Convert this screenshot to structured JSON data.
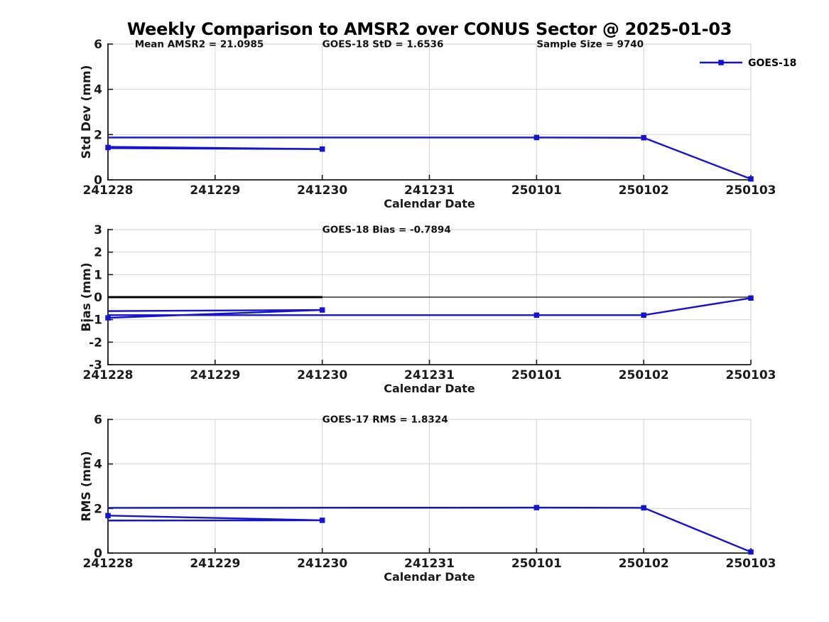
{
  "title": "Weekly Comparison to AMSR2 over CONUS Sector @ 2025-01-03",
  "colors": {
    "series": "#1414d0",
    "grid": "#d6d6d6",
    "box_light": "#cccccc",
    "axis": "#1a1a1a",
    "text": "#1a1a1a",
    "annotation_text": "#111111",
    "zero_line": "#000000"
  },
  "legend": {
    "label": "GOES-18"
  },
  "chart_data": [
    {
      "id": "stddev",
      "type": "line",
      "series_name": "GOES-18",
      "ylabel": "Std Dev (mm)",
      "xlabel": "Calendar Date",
      "ylim": [
        0,
        6
      ],
      "yticks": [
        0,
        2,
        4,
        6
      ],
      "categories": [
        "241228",
        "241229",
        "241230",
        "241231",
        "250101",
        "250102",
        "250103"
      ],
      "annotations": [
        {
          "xi": 0.25,
          "text": "Mean AMSR2 = 21.0985"
        },
        {
          "xi": 2.0,
          "text": "GOES-18 StD = 1.6536"
        },
        {
          "xi": 4.0,
          "text": "Sample Size = 9740"
        }
      ],
      "has_legend": true,
      "lines": [
        {
          "points": [
            [
              0,
              1.46
            ],
            [
              2,
              1.36
            ]
          ]
        },
        {
          "points": [
            [
              0,
              1.4
            ],
            [
              2,
              1.36
            ]
          ]
        },
        {
          "points": [
            [
              0,
              1.87
            ],
            [
              4,
              1.87
            ],
            [
              5,
              1.86
            ],
            [
              6,
              0.04
            ]
          ]
        }
      ],
      "markers": [
        [
          0,
          1.43
        ],
        [
          2,
          1.36
        ],
        [
          4,
          1.87
        ],
        [
          5,
          1.86
        ],
        [
          6,
          0.04
        ]
      ]
    },
    {
      "id": "bias",
      "type": "line",
      "series_name": "GOES-18",
      "ylabel": "Bias (mm)",
      "xlabel": "Calendar Date",
      "ylim": [
        -3,
        3
      ],
      "yticks": [
        -3,
        -2,
        -1,
        0,
        1,
        2,
        3
      ],
      "categories": [
        "241228",
        "241229",
        "241230",
        "241231",
        "250101",
        "250102",
        "250103"
      ],
      "annotations": [
        {
          "xi": 2.0,
          "text": "GOES-18 Bias  = -0.7894"
        }
      ],
      "has_legend": false,
      "zero_line": {
        "value": 0,
        "bold_span": [
          0,
          2
        ]
      },
      "lines": [
        {
          "points": [
            [
              0,
              -0.62
            ],
            [
              2,
              -0.57
            ]
          ]
        },
        {
          "points": [
            [
              0,
              -0.92
            ],
            [
              2,
              -0.57
            ]
          ]
        },
        {
          "points": [
            [
              0,
              -0.8
            ],
            [
              4,
              -0.8
            ],
            [
              5,
              -0.8
            ],
            [
              6,
              -0.04
            ]
          ]
        }
      ],
      "markers": [
        [
          0,
          -0.92
        ],
        [
          2,
          -0.57
        ],
        [
          4,
          -0.8
        ],
        [
          5,
          -0.8
        ],
        [
          6,
          -0.04
        ]
      ]
    },
    {
      "id": "rms",
      "type": "line",
      "series_name": "GOES-18",
      "ylabel": "RMS (mm)",
      "xlabel": "Calendar Date",
      "ylim": [
        0,
        6
      ],
      "yticks": [
        0,
        2,
        4,
        6
      ],
      "categories": [
        "241228",
        "241229",
        "241230",
        "241231",
        "250101",
        "250102",
        "250103"
      ],
      "annotations": [
        {
          "xi": 2.0,
          "text": "GOES-17 RMS = 1.8324"
        }
      ],
      "has_legend": false,
      "lines": [
        {
          "points": [
            [
              0,
              1.68
            ],
            [
              2,
              1.47
            ]
          ]
        },
        {
          "points": [
            [
              0,
              1.46
            ],
            [
              2,
              1.47
            ]
          ]
        },
        {
          "points": [
            [
              0,
              2.03
            ],
            [
              4,
              2.04
            ],
            [
              5,
              2.03
            ],
            [
              6,
              0.05
            ]
          ]
        }
      ],
      "markers": [
        [
          0,
          1.68
        ],
        [
          2,
          1.47
        ],
        [
          4,
          2.04
        ],
        [
          5,
          2.03
        ],
        [
          6,
          0.05
        ]
      ]
    }
  ]
}
